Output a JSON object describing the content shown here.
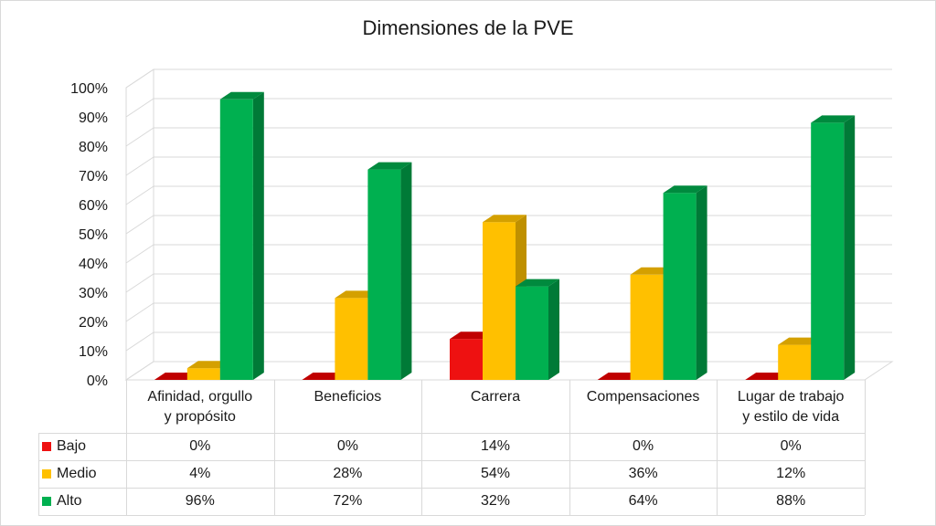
{
  "chart_data": {
    "type": "bar",
    "title": "Dimensiones de la PVE",
    "categories": [
      "Afinidad, orgullo y propósito",
      "Beneficios",
      "Carrera",
      "Compensaciones",
      "Lugar de trabajo y estilo de vida"
    ],
    "category_lines": [
      [
        "Afinidad, orgullo",
        "y propósito"
      ],
      [
        "Beneficios"
      ],
      [
        "Carrera"
      ],
      [
        "Compensaciones"
      ],
      [
        "Lugar de trabajo",
        "y estilo de vida"
      ]
    ],
    "series": [
      {
        "name": "Bajo",
        "values": [
          0,
          0,
          14,
          0,
          0
        ],
        "labels": [
          "0%",
          "0%",
          "14%",
          "0%",
          "0%"
        ],
        "color": "#ee1111",
        "side": "#b00000",
        "top": "#c00000"
      },
      {
        "name": "Medio",
        "values": [
          4,
          28,
          54,
          36,
          12
        ],
        "labels": [
          "4%",
          "28%",
          "54%",
          "36%",
          "12%"
        ],
        "color": "#ffc000",
        "side": "#bf9000",
        "top": "#d4a000"
      },
      {
        "name": "Alto",
        "values": [
          96,
          72,
          32,
          64,
          88
        ],
        "labels": [
          "96%",
          "72%",
          "32%",
          "64%",
          "88%"
        ],
        "color": "#00b050",
        "side": "#007a37",
        "top": "#008a3e"
      }
    ],
    "y_ticks": [
      "0%",
      "10%",
      "20%",
      "30%",
      "40%",
      "50%",
      "60%",
      "70%",
      "80%",
      "90%",
      "100%"
    ],
    "ylim": [
      0,
      100
    ],
    "grid": true,
    "legend": "data table"
  }
}
